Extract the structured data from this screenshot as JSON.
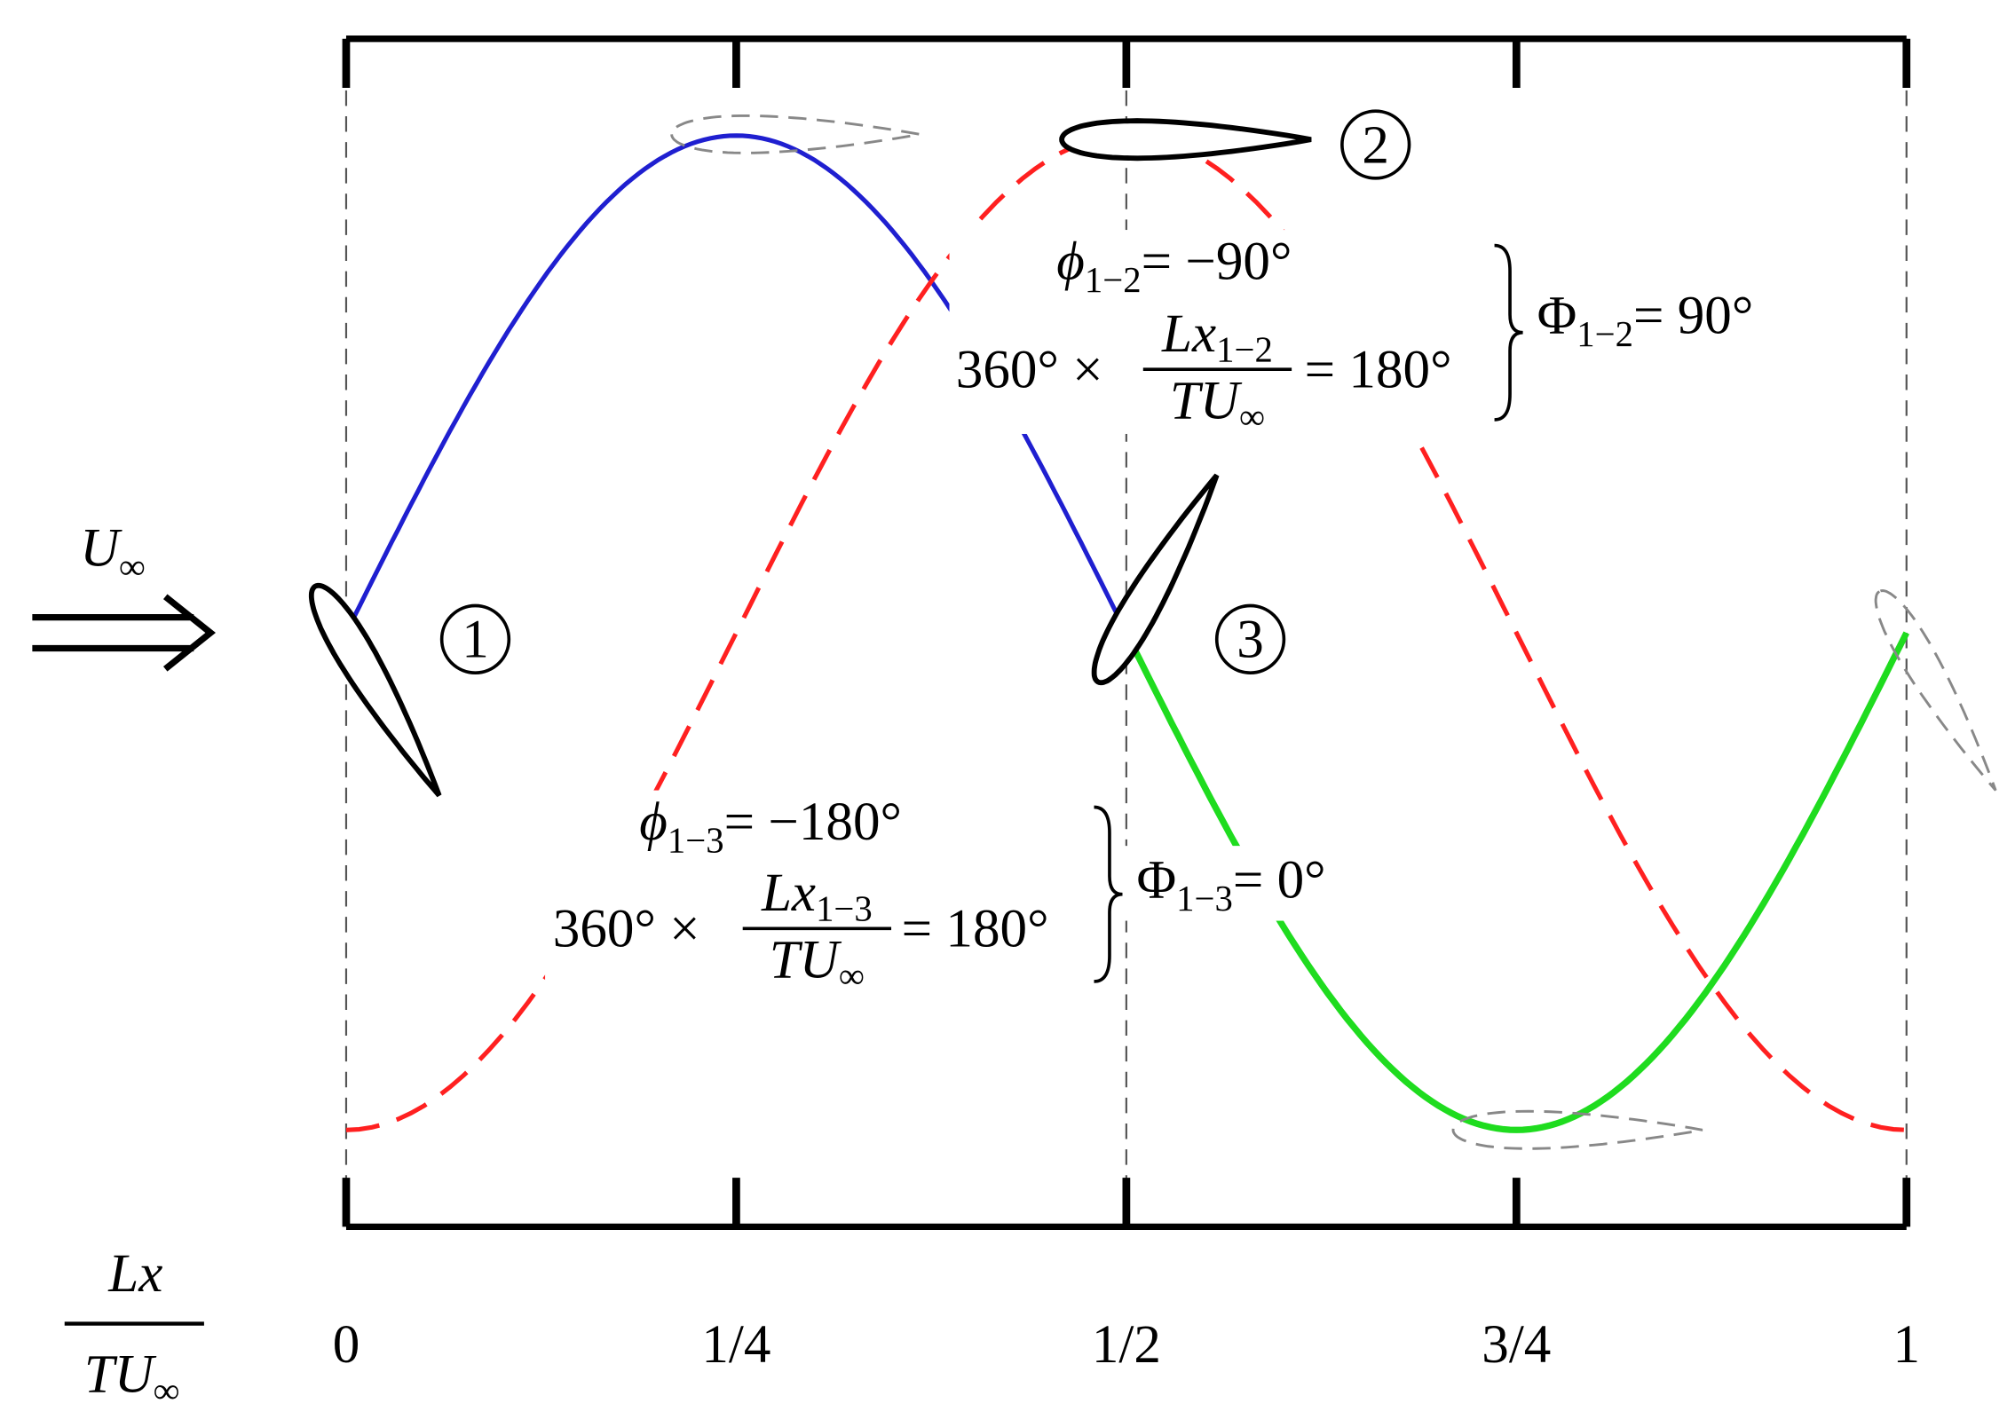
{
  "inflow_label": {
    "symbol": "U",
    "subscript": "∞"
  },
  "x_axis_label": {
    "numerator": "Lx",
    "denominator": "TU",
    "denominator_subscript": "∞"
  },
  "x_ticks": [
    "0",
    "1/4",
    "1/2",
    "3/4",
    "1"
  ],
  "foil_labels": [
    "1",
    "2",
    "3"
  ],
  "annotations": [
    {
      "phase": {
        "symbol": "ϕ",
        "subscript": "1−2",
        "text": "= −90°"
      },
      "spacing": {
        "prefix": "360° ×",
        "numerator": "Lx",
        "numerator_subscript": "1−2",
        "denominator": "TU",
        "denominator_subscript": "∞",
        "text": "= 180°"
      },
      "total": {
        "symbol": "Φ",
        "subscript": "1−2",
        "text": "= 90°"
      }
    },
    {
      "phase": {
        "symbol": "ϕ",
        "subscript": "1−3",
        "text": "= −180°"
      },
      "spacing": {
        "prefix": "360° ×",
        "numerator": "Lx",
        "numerator_subscript": "1−3",
        "denominator": "TU",
        "denominator_subscript": "∞",
        "text": "= 180°"
      },
      "total": {
        "symbol": "Φ",
        "subscript": "1−3",
        "text": "= 0°"
      }
    }
  ]
}
